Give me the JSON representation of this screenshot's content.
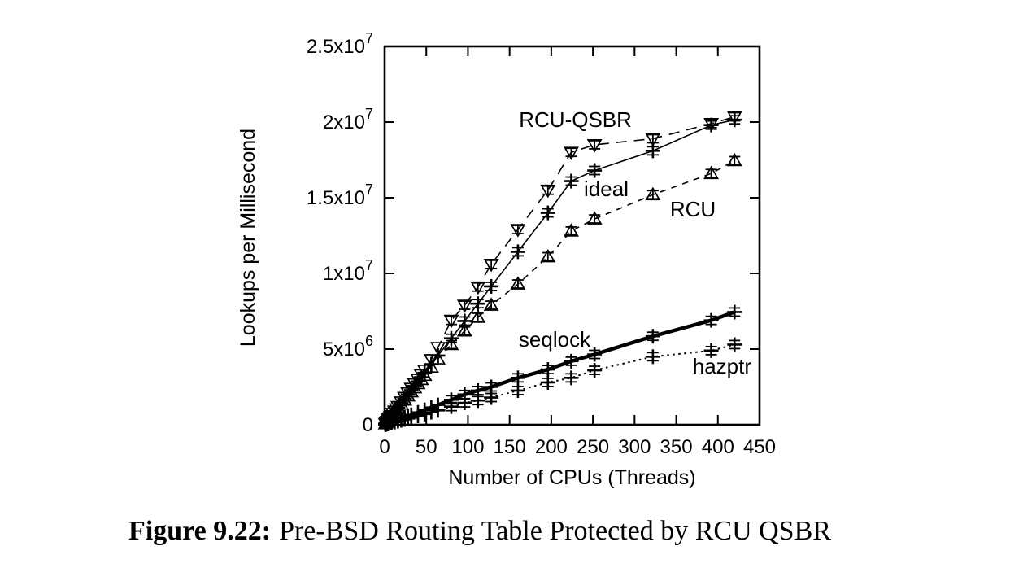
{
  "caption": {
    "label": "Figure 9.22:",
    "text": "Pre-BSD Routing Table Protected by RCU QSBR"
  },
  "colors": {
    "foreground": "#000000",
    "background": "#ffffff"
  },
  "chart_data": {
    "type": "line",
    "title": "",
    "xlabel": "Number of CPUs (Threads)",
    "ylabel": "Lookups per Millisecond",
    "xlim": [
      0,
      450
    ],
    "ylim": [
      0,
      25000000
    ],
    "grid": false,
    "legend": "inline-annotations",
    "xticks": [
      0,
      50,
      100,
      150,
      200,
      250,
      300,
      350,
      400,
      450
    ],
    "yticks": [
      {
        "v": 0,
        "label": "0"
      },
      {
        "v": 5000000,
        "label": "5x10^6"
      },
      {
        "v": 10000000,
        "label": "1x10^7"
      },
      {
        "v": 15000000,
        "label": "1.5x10^7"
      },
      {
        "v": 20000000,
        "label": "2x10^7"
      },
      {
        "v": 25000000,
        "label": "2.5x10^7"
      }
    ],
    "series": [
      {
        "name": "RCU-QSBR",
        "marker": "triangle-down",
        "line": "dashed-long",
        "points": [
          [
            1,
            75000
          ],
          [
            2,
            150000
          ],
          [
            3,
            226000
          ],
          [
            4,
            301000
          ],
          [
            5,
            376000
          ],
          [
            6,
            451000
          ],
          [
            7,
            527000
          ],
          [
            8,
            602000
          ],
          [
            10,
            752000
          ],
          [
            12,
            903000
          ],
          [
            14,
            1053000
          ],
          [
            16,
            1204000
          ],
          [
            20,
            1505000
          ],
          [
            24,
            1806000
          ],
          [
            28,
            2107000
          ],
          [
            32,
            2408000
          ],
          [
            36,
            2709000
          ],
          [
            40,
            3010000
          ],
          [
            44,
            3311000
          ],
          [
            48,
            3612000
          ],
          [
            56,
            4300000
          ],
          [
            64,
            5100000
          ],
          [
            80,
            6900000
          ],
          [
            96,
            7900000
          ],
          [
            112,
            9100000
          ],
          [
            128,
            10600000
          ],
          [
            160,
            12900000
          ],
          [
            196,
            15500000
          ],
          [
            224,
            18000000
          ],
          [
            252,
            18500000
          ],
          [
            322,
            18900000
          ],
          [
            392,
            19900000
          ],
          [
            420,
            20350000
          ]
        ]
      },
      {
        "name": "ideal",
        "marker": "plus",
        "line": "solid",
        "points": [
          [
            1,
            71000
          ],
          [
            2,
            143000
          ],
          [
            3,
            214000
          ],
          [
            4,
            286000
          ],
          [
            5,
            357000
          ],
          [
            6,
            429000
          ],
          [
            7,
            500000
          ],
          [
            8,
            571000
          ],
          [
            10,
            714000
          ],
          [
            12,
            857000
          ],
          [
            14,
            1000000
          ],
          [
            16,
            1143000
          ],
          [
            20,
            1429000
          ],
          [
            24,
            1714000
          ],
          [
            28,
            2000000
          ],
          [
            32,
            2286000
          ],
          [
            36,
            2571000
          ],
          [
            40,
            2857000
          ],
          [
            44,
            3143000
          ],
          [
            48,
            3429000
          ],
          [
            56,
            4000000
          ],
          [
            64,
            4571000
          ],
          [
            80,
            5714000
          ],
          [
            96,
            6857000
          ],
          [
            112,
            8000000
          ],
          [
            128,
            9143000
          ],
          [
            160,
            11430000
          ],
          [
            196,
            14000000
          ],
          [
            224,
            16100000
          ],
          [
            252,
            16800000
          ],
          [
            322,
            18100000
          ],
          [
            392,
            19800000
          ],
          [
            420,
            20150000
          ]
        ]
      },
      {
        "name": "RCU",
        "marker": "triangle-up",
        "line": "dashed",
        "points": [
          [
            1,
            68000
          ],
          [
            2,
            136000
          ],
          [
            3,
            204000
          ],
          [
            4,
            272000
          ],
          [
            5,
            340000
          ],
          [
            6,
            408000
          ],
          [
            7,
            476000
          ],
          [
            8,
            544000
          ],
          [
            10,
            680000
          ],
          [
            12,
            816000
          ],
          [
            14,
            952000
          ],
          [
            16,
            1088000
          ],
          [
            20,
            1360000
          ],
          [
            24,
            1632000
          ],
          [
            28,
            1904000
          ],
          [
            32,
            2176000
          ],
          [
            36,
            2448000
          ],
          [
            40,
            2720000
          ],
          [
            44,
            2992000
          ],
          [
            48,
            3264000
          ],
          [
            56,
            3808000
          ],
          [
            64,
            4352000
          ],
          [
            80,
            5300000
          ],
          [
            96,
            6200000
          ],
          [
            112,
            7100000
          ],
          [
            128,
            7900000
          ],
          [
            160,
            9300000
          ],
          [
            196,
            11100000
          ],
          [
            224,
            12800000
          ],
          [
            252,
            13600000
          ],
          [
            322,
            15200000
          ],
          [
            392,
            16600000
          ],
          [
            420,
            17450000
          ]
        ]
      },
      {
        "name": "seqlock",
        "marker": "plus",
        "line": "solid-thick",
        "points": [
          [
            1,
            21000
          ],
          [
            2,
            41000
          ],
          [
            4,
            82000
          ],
          [
            8,
            164000
          ],
          [
            12,
            246000
          ],
          [
            16,
            328000
          ],
          [
            20,
            410000
          ],
          [
            24,
            492000
          ],
          [
            28,
            574000
          ],
          [
            32,
            656000
          ],
          [
            40,
            820000
          ],
          [
            48,
            984000
          ],
          [
            56,
            1148000
          ],
          [
            64,
            1310000
          ],
          [
            80,
            1650000
          ],
          [
            96,
            2000000
          ],
          [
            112,
            2260000
          ],
          [
            128,
            2500000
          ],
          [
            160,
            3100000
          ],
          [
            196,
            3650000
          ],
          [
            224,
            4200000
          ],
          [
            252,
            4650000
          ],
          [
            322,
            5850000
          ],
          [
            392,
            6900000
          ],
          [
            420,
            7450000
          ]
        ]
      },
      {
        "name": "hazptr",
        "marker": "plus",
        "line": "dotted",
        "points": [
          [
            1,
            15000
          ],
          [
            2,
            30000
          ],
          [
            4,
            59000
          ],
          [
            8,
            118000
          ],
          [
            12,
            178000
          ],
          [
            16,
            237000
          ],
          [
            20,
            296000
          ],
          [
            24,
            355000
          ],
          [
            28,
            414000
          ],
          [
            32,
            474000
          ],
          [
            40,
            592000
          ],
          [
            48,
            710000
          ],
          [
            56,
            829000
          ],
          [
            64,
            950000
          ],
          [
            80,
            1200000
          ],
          [
            96,
            1450000
          ],
          [
            112,
            1600000
          ],
          [
            128,
            1800000
          ],
          [
            160,
            2260000
          ],
          [
            196,
            2800000
          ],
          [
            224,
            3100000
          ],
          [
            252,
            3600000
          ],
          [
            322,
            4500000
          ],
          [
            392,
            4900000
          ],
          [
            420,
            5300000
          ]
        ]
      }
    ],
    "annotations": [
      {
        "text": "RCU-QSBR",
        "x": 229,
        "y": 20160000
      },
      {
        "text": "ideal",
        "x": 266,
        "y": 15590000
      },
      {
        "text": "RCU",
        "x": 370,
        "y": 14250000
      },
      {
        "text": "seqlock",
        "x": 204,
        "y": 5650000
      },
      {
        "text": "hazptr",
        "x": 405,
        "y": 3870000
      }
    ]
  }
}
